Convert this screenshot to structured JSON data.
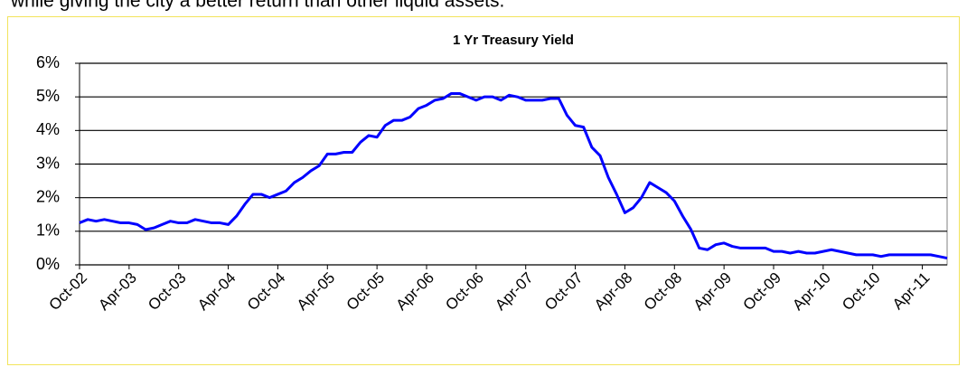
{
  "page_text": "while giving the city a better return than other liquid assets.",
  "chart_data": {
    "type": "line",
    "title": "1 Yr Treasury Yield",
    "categories": [
      "Oct-02",
      null,
      null,
      null,
      null,
      null,
      "Apr-03",
      null,
      null,
      null,
      null,
      null,
      "Oct-03",
      null,
      null,
      null,
      null,
      null,
      "Apr-04",
      null,
      null,
      null,
      null,
      null,
      "Oct-04",
      null,
      null,
      null,
      null,
      null,
      "Apr-05",
      null,
      null,
      null,
      null,
      null,
      "Oct-05",
      null,
      null,
      null,
      null,
      null,
      "Apr-06",
      null,
      null,
      null,
      null,
      null,
      "Oct-06",
      null,
      null,
      null,
      null,
      null,
      "Apr-07",
      null,
      null,
      null,
      null,
      null,
      "Oct-07",
      null,
      null,
      null,
      null,
      null,
      "Apr-08",
      null,
      null,
      null,
      null,
      null,
      "Oct-08",
      null,
      null,
      null,
      null,
      null,
      "Apr-09",
      null,
      null,
      null,
      null,
      null,
      "Oct-09",
      null,
      null,
      null,
      null,
      null,
      "Apr-10",
      null,
      null,
      null,
      null,
      null,
      "Oct-10",
      null,
      null,
      null,
      null,
      null,
      "Apr-11",
      null,
      null,
      null
    ],
    "values": [
      1.25,
      1.35,
      1.3,
      1.35,
      1.3,
      1.25,
      1.25,
      1.2,
      1.05,
      1.1,
      1.2,
      1.3,
      1.25,
      1.25,
      1.35,
      1.3,
      1.25,
      1.25,
      1.2,
      1.45,
      1.8,
      2.1,
      2.1,
      2.0,
      2.1,
      2.2,
      2.45,
      2.6,
      2.8,
      2.95,
      3.3,
      3.3,
      3.35,
      3.35,
      3.65,
      3.85,
      3.8,
      4.15,
      4.3,
      4.3,
      4.4,
      4.65,
      4.75,
      4.9,
      4.95,
      5.1,
      5.1,
      5.0,
      4.9,
      5.0,
      5.0,
      4.9,
      5.05,
      5.0,
      4.9,
      4.9,
      4.9,
      4.95,
      4.95,
      4.45,
      4.15,
      4.1,
      3.5,
      3.25,
      2.6,
      2.1,
      1.55,
      1.7,
      2.0,
      2.45,
      2.3,
      2.15,
      1.9,
      1.45,
      1.05,
      0.5,
      0.45,
      0.6,
      0.65,
      0.55,
      0.5,
      0.5,
      0.5,
      0.5,
      0.4,
      0.4,
      0.35,
      0.4,
      0.35,
      0.35,
      0.4,
      0.45,
      0.4,
      0.35,
      0.3,
      0.3,
      0.3,
      0.25,
      0.3,
      0.3,
      0.3,
      0.3,
      0.3,
      0.3,
      0.25,
      0.2
    ],
    "color": "#0000ff",
    "ylim": [
      0,
      6
    ],
    "yticks": [
      {
        "value": 0,
        "label": "0%"
      },
      {
        "value": 1,
        "label": "1%"
      },
      {
        "value": 2,
        "label": "2%"
      },
      {
        "value": 3,
        "label": "3%"
      },
      {
        "value": 4,
        "label": "4%"
      },
      {
        "value": 5,
        "label": "5%"
      },
      {
        "value": 6,
        "label": "6%"
      }
    ],
    "grid": true
  }
}
